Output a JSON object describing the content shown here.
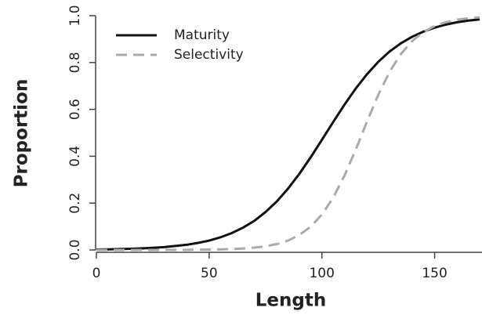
{
  "chart_data": {
    "type": "line",
    "xlabel": "Length",
    "ylabel": "Proportion",
    "x": [
      0,
      5,
      10,
      15,
      20,
      25,
      30,
      35,
      40,
      45,
      50,
      55,
      60,
      65,
      70,
      75,
      80,
      85,
      90,
      95,
      100,
      105,
      110,
      115,
      120,
      125,
      130,
      135,
      140,
      145,
      150,
      155,
      160,
      165,
      170
    ],
    "series": [
      {
        "name": "Maturity",
        "color": "#111111",
        "dash": "solid",
        "values": [
          0.002,
          0.0027,
          0.0036,
          0.0049,
          0.0067,
          0.009,
          0.012,
          0.017,
          0.022,
          0.03,
          0.04,
          0.054,
          0.072,
          0.095,
          0.124,
          0.162,
          0.207,
          0.262,
          0.325,
          0.395,
          0.47,
          0.546,
          0.62,
          0.689,
          0.75,
          0.803,
          0.847,
          0.882,
          0.91,
          0.932,
          0.949,
          0.962,
          0.972,
          0.979,
          0.984
        ]
      },
      {
        "name": "Selectivity",
        "color": "#aaaaaa",
        "dash": "dashed",
        "values": [
          0,
          0,
          0,
          0,
          0.0001,
          0.0001,
          0.0002,
          0.0003,
          0.0006,
          0.0009,
          0.0015,
          0.0024,
          0.0038,
          0.0061,
          0.0099,
          0.016,
          0.025,
          0.04,
          0.064,
          0.099,
          0.151,
          0.223,
          0.317,
          0.428,
          0.548,
          0.662,
          0.76,
          0.836,
          0.892,
          0.93,
          0.956,
          0.972,
          0.983,
          0.989,
          0.993
        ]
      }
    ],
    "xlim": [
      0,
      171
    ],
    "xticks": [
      0,
      50,
      100,
      150
    ],
    "ylim": [
      0,
      1
    ],
    "yticks": [
      {
        "value": 0,
        "label": "0.0"
      },
      0.2,
      0.4,
      0.6,
      0.8,
      {
        "value": 1,
        "label": "1.0"
      }
    ],
    "legend": "top-left",
    "grid": false
  }
}
